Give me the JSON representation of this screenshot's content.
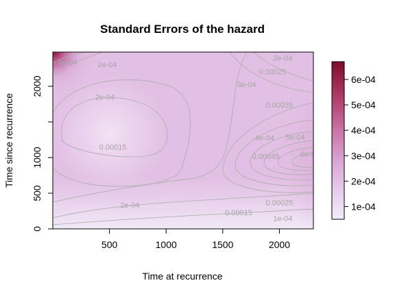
{
  "chart_data": {
    "type": "heatmap",
    "title": "Standard Errors of the hazard",
    "xlabel": "Time at recurrence",
    "ylabel": "Time since recurrence",
    "xlim": [
      0,
      2300
    ],
    "ylim": [
      0,
      2480
    ],
    "x_ticks": [
      "500",
      "1000",
      "1500",
      "2000"
    ],
    "y_ticks": [
      "0",
      "500",
      "1000",
      "2000"
    ],
    "colorbar": {
      "range": [
        5e-05,
        0.00067
      ],
      "ticks": [
        "1e-04",
        "2e-04",
        "3e-04",
        "4e-04",
        "5e-04",
        "6e-04"
      ],
      "low_color": "#f1e8f6",
      "mid_color": "#d9a6d6",
      "high_color": "#8a1133"
    },
    "contour_labels": [
      {
        "text": "4e-04",
        "x": 130,
        "y": 2300
      },
      {
        "text": "2e-04",
        "x": 480,
        "y": 2270
      },
      {
        "text": "2e-04",
        "x": 460,
        "y": 1810
      },
      {
        "text": "0.00015",
        "x": 530,
        "y": 1110
      },
      {
        "text": "2e-04",
        "x": 680,
        "y": 300
      },
      {
        "text": "0.00015",
        "x": 1640,
        "y": 190
      },
      {
        "text": "1e-04",
        "x": 2030,
        "y": 110
      },
      {
        "text": "2e-04",
        "x": 2030,
        "y": 2360
      },
      {
        "text": "0.00025",
        "x": 1940,
        "y": 2170
      },
      {
        "text": "3e-04",
        "x": 1710,
        "y": 1990
      },
      {
        "text": "0.00035",
        "x": 2000,
        "y": 1700
      },
      {
        "text": "4e-04",
        "x": 1870,
        "y": 1240
      },
      {
        "text": "5e-04",
        "x": 2140,
        "y": 1250
      },
      {
        "text": "0.00045",
        "x": 1880,
        "y": 980
      },
      {
        "text": "6e-04",
        "x": 2270,
        "y": 1010
      },
      {
        "text": "0.00025",
        "x": 2000,
        "y": 330
      }
    ]
  }
}
